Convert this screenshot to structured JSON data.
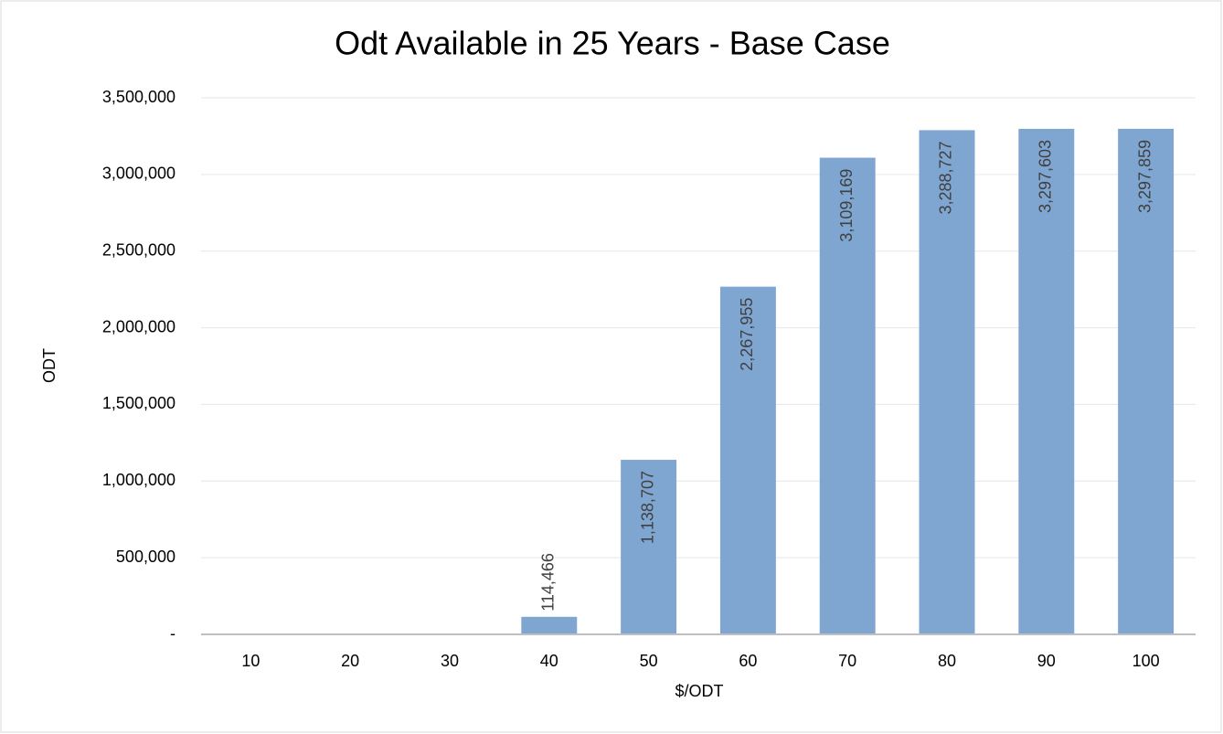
{
  "chart_data": {
    "type": "bar",
    "title": "Odt Available in 25 Years - Base Case",
    "x_label": "$/ODT",
    "y_label": "ODT",
    "categories": [
      "10",
      "20",
      "30",
      "40",
      "50",
      "60",
      "70",
      "80",
      "90",
      "100"
    ],
    "values": [
      0,
      0,
      0,
      114466,
      1138707,
      2267955,
      3109169,
      3288727,
      3297603,
      3297859
    ],
    "value_labels": [
      null,
      null,
      null,
      "114,466",
      "1,138,707",
      "2,267,955",
      "3,109,169",
      "3,288,727",
      "3,297,603",
      "3,297,859"
    ],
    "color": "#7fa6d1",
    "ylim": [
      0,
      3500000
    ],
    "yticks": [
      {
        "value": 0,
        "label": "-"
      },
      {
        "value": 500000,
        "label": "500,000"
      },
      {
        "value": 1000000,
        "label": "1,000,000"
      },
      {
        "value": 1500000,
        "label": "1,500,000"
      },
      {
        "value": 2000000,
        "label": "2,000,000"
      },
      {
        "value": 2500000,
        "label": "2,500,000"
      },
      {
        "value": 3000000,
        "label": "3,000,000"
      },
      {
        "value": 3500000,
        "label": "3,500,000"
      }
    ],
    "grid": true
  }
}
